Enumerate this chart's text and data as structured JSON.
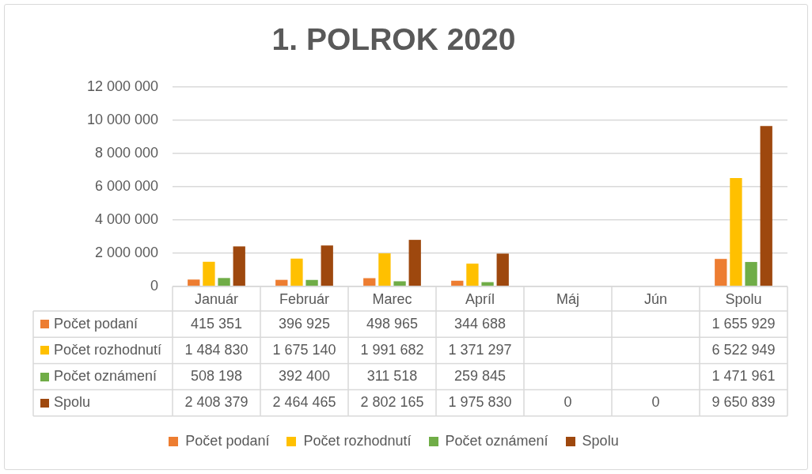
{
  "chart_data": {
    "type": "bar",
    "title": "1. POLROK 2020",
    "categories": [
      "Január",
      "Február",
      "Marec",
      "Apríl",
      "Máj",
      "Jún",
      "Spolu"
    ],
    "series": [
      {
        "name": "Počet podaní",
        "color": "#ed7d31",
        "values": [
          415351,
          396925,
          498965,
          344688,
          null,
          null,
          1655929
        ],
        "value_labels": [
          "415 351",
          "396 925",
          "498 965",
          "344 688",
          null,
          null,
          "1 655 929"
        ]
      },
      {
        "name": "Počet rozhodnutí",
        "color": "#ffc000",
        "values": [
          1484830,
          1675140,
          1991682,
          1371297,
          null,
          null,
          6522949
        ],
        "value_labels": [
          "1 484 830",
          "1 675 140",
          "1 991 682",
          "1 371 297",
          null,
          null,
          "6 522 949"
        ]
      },
      {
        "name": "Počet oznámení",
        "color": "#70ad47",
        "values": [
          508198,
          392400,
          311518,
          259845,
          null,
          null,
          1471961
        ],
        "value_labels": [
          "508 198",
          "392 400",
          "311 518",
          "259 845",
          null,
          null,
          "1 471 961"
        ]
      },
      {
        "name": "Spolu",
        "color": "#9e480e",
        "values": [
          2408379,
          2464465,
          2802165,
          1975830,
          0,
          0,
          9650839
        ],
        "value_labels": [
          "2 408 379",
          "2 464 465",
          "2 802 165",
          "1 975 830",
          "0",
          "0",
          "9 650 839"
        ]
      }
    ],
    "ylim": [
      0,
      12000000
    ],
    "yticks": [
      0,
      {
        "value": 2000000,
        "label": "2 000 000"
      },
      {
        "value": 4000000,
        "label": "4 000 000"
      },
      {
        "value": 6000000,
        "label": "6 000 000"
      },
      {
        "value": 8000000,
        "label": "8 000 000"
      },
      {
        "value": 10000000,
        "label": "10 000 000"
      },
      {
        "value": 12000000,
        "label": "12 000 000"
      }
    ],
    "grid": "y",
    "legend": "bottom"
  }
}
